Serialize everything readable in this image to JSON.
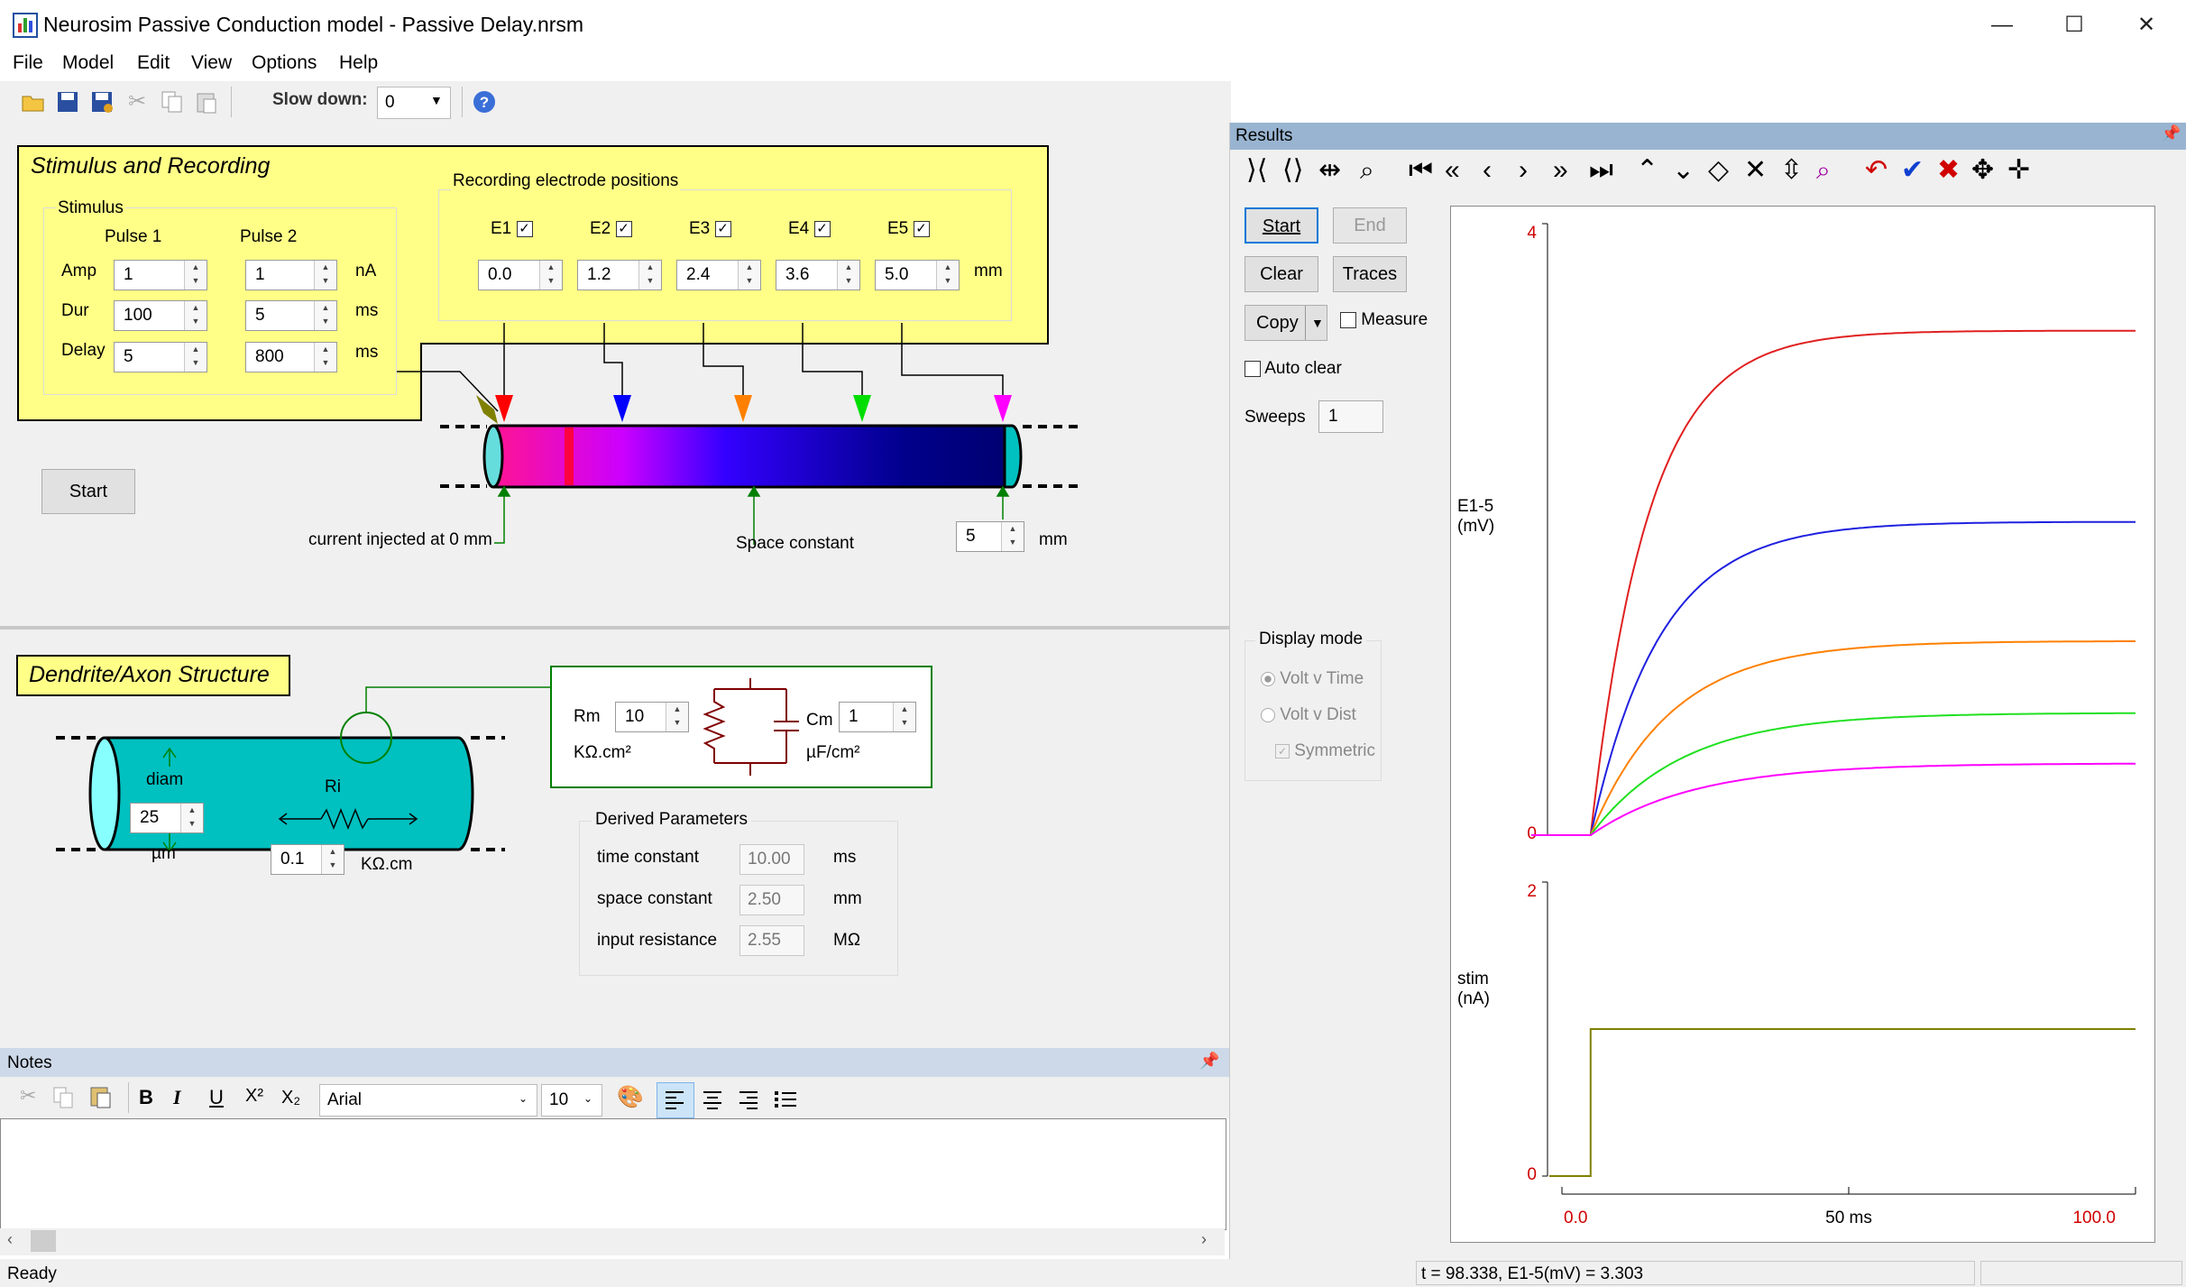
{
  "window": {
    "title": "Neurosim Passive Conduction model - Passive Delay.nrsm",
    "controls": {
      "minimize": "—",
      "maximize": "☐",
      "close": "✕"
    }
  },
  "menu": [
    "File",
    "Model",
    "Edit",
    "View",
    "Options",
    "Help"
  ],
  "toolbar": {
    "slow_down_label": "Slow down:",
    "slow_down_value": "0"
  },
  "stimulus_recording": {
    "title": "Stimulus and Recording",
    "stimulus_label": "Stimulus",
    "pulse1_label": "Pulse 1",
    "pulse2_label": "Pulse 2",
    "rows": [
      {
        "label": "Amp",
        "p1": "1",
        "p2": "1",
        "unit": "nA"
      },
      {
        "label": "Dur",
        "p1": "100",
        "p2": "5",
        "unit": "ms"
      },
      {
        "label": "Delay",
        "p1": "5",
        "p2": "800",
        "unit": "ms"
      }
    ],
    "electrodes_label": "Recording electrode positions",
    "electrodes": [
      {
        "name": "E1",
        "checked": "✓",
        "value": "0.0",
        "color": "#ff0000"
      },
      {
        "name": "E2",
        "checked": "✓",
        "value": "1.2",
        "color": "#0000ff"
      },
      {
        "name": "E3",
        "checked": "✓",
        "value": "2.4",
        "color": "#ff8000"
      },
      {
        "name": "E4",
        "checked": "✓",
        "value": "3.6",
        "color": "#00ee00"
      },
      {
        "name": "E5",
        "checked": "✓",
        "value": "5.0",
        "color": "#ff00ff"
      }
    ],
    "electrode_unit": "mm",
    "start_button": "Start",
    "current_injected_label": "current injected at 0 mm",
    "space_constant_label": "Space constant",
    "length_value": "5",
    "length_unit": "mm"
  },
  "structure": {
    "title": "Dendrite/Axon Structure",
    "diam_label": "diam",
    "diam_value": "25",
    "diam_unit": "µm",
    "ri_label": "Ri",
    "ri_value": "0.1",
    "ri_unit": "KΩ.cm",
    "rm_label": "Rm",
    "rm_value": "10",
    "rm_unit": "KΩ.cm²",
    "cm_label": "Cm",
    "cm_value": "1",
    "cm_unit": "µF/cm²",
    "derived_title": "Derived Parameters",
    "derived": [
      {
        "label": "time constant",
        "value": "10.00",
        "unit": "ms"
      },
      {
        "label": "space constant",
        "value": "2.50",
        "unit": "mm"
      },
      {
        "label": "input resistance",
        "value": "2.55",
        "unit": "MΩ"
      }
    ]
  },
  "results": {
    "header": "Results",
    "start": "Start",
    "end": "End",
    "clear": "Clear",
    "traces": "Traces",
    "copy": "Copy",
    "measure": "Measure",
    "auto_clear": "Auto clear",
    "sweeps_label": "Sweeps",
    "sweeps_value": "1",
    "display_mode": "Display mode",
    "modes": [
      "Volt v Time",
      "Volt v Dist"
    ],
    "symmetric": "Symmetric"
  },
  "chart_data": {
    "type": "line",
    "xlim": [
      0,
      100
    ],
    "x_tick_labels": [
      "0.0",
      "50 ms",
      "100.0"
    ],
    "panels": [
      {
        "ylabel": "E1-5\n(mV)",
        "ylim": [
          0,
          4
        ],
        "ytick_labels": [
          "4",
          "0"
        ],
        "series": [
          {
            "color": "#e02020",
            "steady_value": 3.3,
            "onset": 5,
            "tau": 10
          },
          {
            "color": "#2020e0",
            "steady_value": 2.05,
            "onset": 5,
            "tau": 12
          },
          {
            "color": "#ff8000",
            "steady_value": 1.27,
            "onset": 5,
            "tau": 14
          },
          {
            "color": "#20e020",
            "steady_value": 0.8,
            "onset": 5,
            "tau": 16
          },
          {
            "color": "#ff00ff",
            "steady_value": 0.47,
            "onset": 5,
            "tau": 18
          }
        ]
      },
      {
        "ylabel": "stim\n(nA)",
        "ylim": [
          0,
          2
        ],
        "ytick_labels": [
          "2",
          "0"
        ],
        "series": [
          {
            "color": "#808000",
            "steps": [
              [
                0,
                0
              ],
              [
                5,
                1
              ],
              [
                100,
                1
              ]
            ]
          }
        ]
      }
    ]
  },
  "notes": {
    "header": "Notes",
    "font_name": "Arial",
    "font_size": "10"
  },
  "status": {
    "left": "Ready",
    "right": "t = 98.338, E1-5(mV) = 3.303"
  }
}
